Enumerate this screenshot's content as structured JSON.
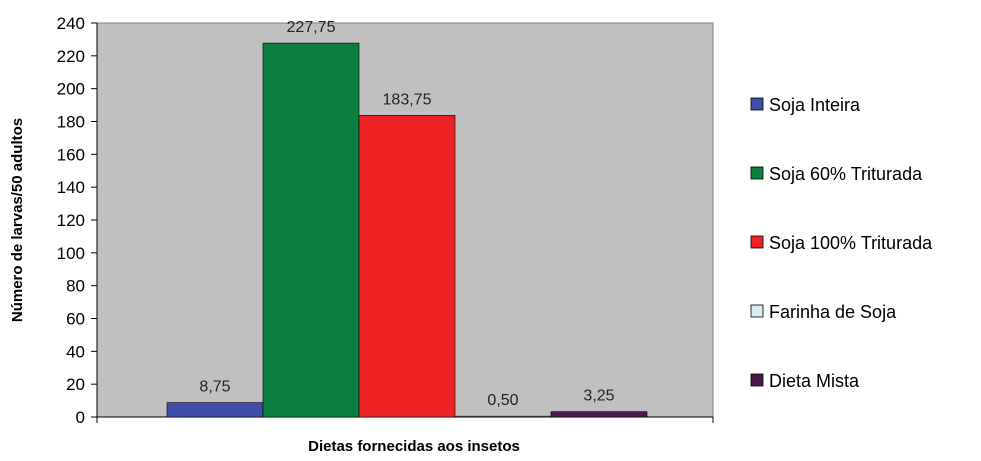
{
  "chart_data": {
    "type": "bar",
    "xlabel": "Dietas fornecidas aos insetos",
    "ylabel": "Número de larvas/50 adultos",
    "ylim": [
      0,
      240
    ],
    "yticks": [
      0,
      20,
      40,
      60,
      80,
      100,
      120,
      140,
      160,
      180,
      200,
      220,
      240
    ],
    "grid": false,
    "plot_background": "#C0C0C0",
    "legend_position": "right",
    "series": [
      {
        "name": "Soja Inteira",
        "value": 8.75,
        "label": "8,75",
        "color": "#3F4FA8"
      },
      {
        "name": "Soja 60% Triturada",
        "value": 227.75,
        "label": "227,75",
        "color": "#0B8040"
      },
      {
        "name": "Soja 100% Triturada",
        "value": 183.75,
        "label": "183,75",
        "color": "#EE2225"
      },
      {
        "name": "Farinha de Soja",
        "value": 0.5,
        "label": "0,50",
        "color": "#D6EEF3"
      },
      {
        "name": "Dieta Mista",
        "value": 3.25,
        "label": "3,25",
        "color": "#4A1A4A"
      }
    ]
  }
}
